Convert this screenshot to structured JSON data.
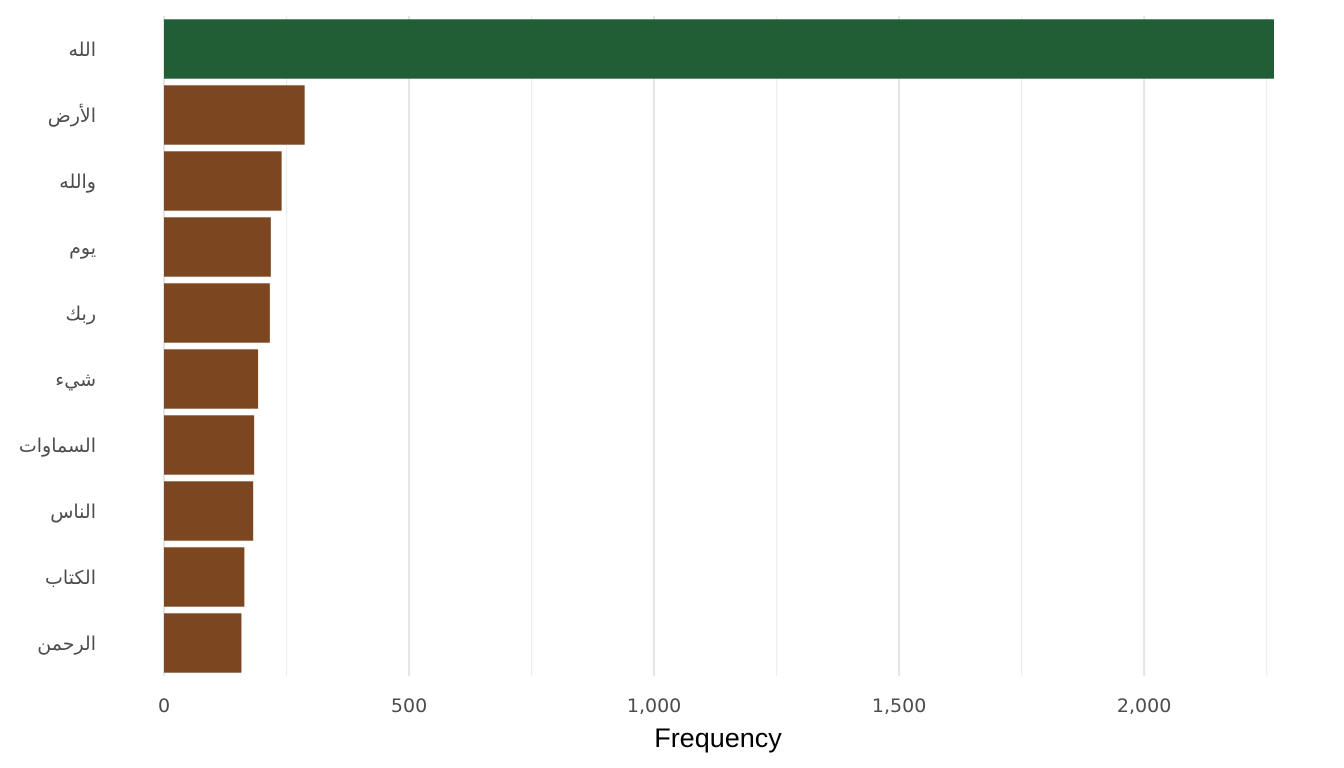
{
  "chart_data": {
    "type": "bar",
    "orientation": "horizontal",
    "categories": [
      "الله",
      "الأرض",
      "والله",
      "يوم",
      "ربك",
      "شيء",
      "السماوات",
      "الناس",
      "الكتاب",
      "الرحمن"
    ],
    "values": [
      2265,
      287,
      240,
      218,
      216,
      192,
      184,
      182,
      164,
      158
    ],
    "xlabel": "Frequency",
    "ylabel": "",
    "xlim": [
      0,
      2265
    ],
    "x_ticks": [
      0,
      500,
      1000,
      1500,
      2000
    ],
    "x_tick_labels": [
      "0",
      "500",
      "1,000",
      "1,500",
      "2,000"
    ],
    "grid": "vertical",
    "colors": {
      "highlight": "#225e35",
      "default": "#7b4620",
      "grid": "#e5e5e5"
    }
  }
}
